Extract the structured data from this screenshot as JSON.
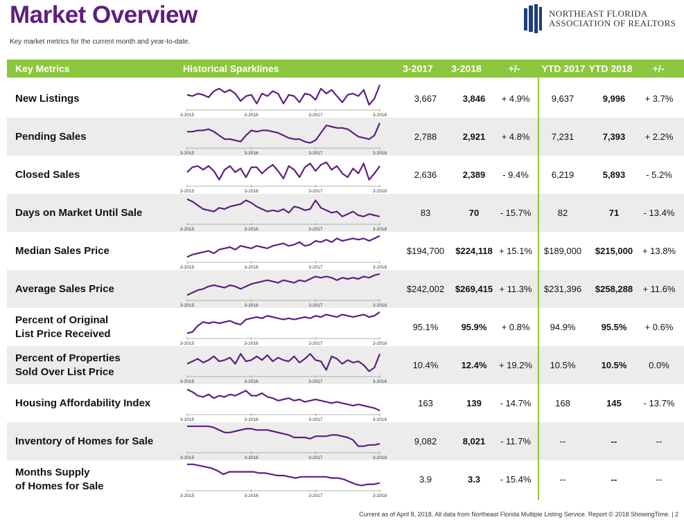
{
  "page": {
    "title": "Market Overview",
    "subtitle": "Key market metrics for the current month and year-to-date.",
    "logo_line1": "NORTHEAST FLORIDA",
    "logo_line2": "ASSOCIATION OF REALTORS",
    "footer": "Current as of April 8, 2018. All data from Northeast Florida Multiple Listing Service. Report © 2018 ShowingTime.  |  2"
  },
  "colors": {
    "accent": "#8dc63f",
    "title": "#5c1f80",
    "sparkline": "#5c1f80",
    "row_shade": "#ececec"
  },
  "headers": {
    "metric": "Key Metrics",
    "sparklines": "Historical Sparklines",
    "m2017": "3-2017",
    "m2018": "3-2018",
    "mchg": "+/-",
    "y2017": "YTD 2017",
    "y2018": "YTD 2018",
    "ychg": "+/-"
  },
  "sparkline_axis": [
    "3-2015",
    "3-2016",
    "3-2017",
    "3-2018"
  ],
  "rows": [
    {
      "metric": "New Listings",
      "m2017": "3,667",
      "m2018": "3,846",
      "mchg": "+ 4.9%",
      "y2017": "9,637",
      "y2018": "9,996",
      "ychg": "+ 3.7%",
      "spark": [
        0.5,
        0.55,
        0.45,
        0.5,
        0.6,
        0.35,
        0.25,
        0.4,
        0.3,
        0.45,
        0.75,
        0.55,
        0.5,
        0.85,
        0.45,
        0.55,
        0.35,
        0.45,
        0.85,
        0.5,
        0.55,
        0.8,
        0.45,
        0.5,
        0.7,
        0.25,
        0.45,
        0.3,
        0.55,
        0.8,
        0.5,
        0.45,
        0.55,
        0.3,
        0.9,
        0.65,
        0.1
      ]
    },
    {
      "metric": "Pending Sales",
      "m2017": "2,788",
      "m2018": "2,921",
      "mchg": "+ 4.8%",
      "y2017": "7,231",
      "y2018": "7,393",
      "ychg": "+ 2.2%",
      "spark": [
        0.45,
        0.45,
        0.4,
        0.4,
        0.35,
        0.45,
        0.6,
        0.75,
        0.75,
        0.8,
        0.85,
        0.6,
        0.4,
        0.45,
        0.4,
        0.4,
        0.45,
        0.5,
        0.6,
        0.7,
        0.75,
        0.75,
        0.85,
        0.9,
        0.8,
        0.5,
        0.2,
        0.25,
        0.3,
        0.3,
        0.35,
        0.5,
        0.65,
        0.7,
        0.75,
        0.6,
        0.1
      ]
    },
    {
      "metric": "Closed Sales",
      "m2017": "2,636",
      "m2018": "2,389",
      "mchg": "- 9.4%",
      "y2017": "6,219",
      "y2018": "5,893",
      "ychg": "- 5.2%",
      "spark": [
        0.55,
        0.35,
        0.3,
        0.45,
        0.3,
        0.5,
        0.85,
        0.45,
        0.3,
        0.55,
        0.4,
        0.75,
        0.35,
        0.35,
        0.6,
        0.4,
        0.25,
        0.5,
        0.8,
        0.3,
        0.45,
        0.75,
        0.35,
        0.2,
        0.5,
        0.25,
        0.15,
        0.45,
        0.3,
        0.6,
        0.75,
        0.4,
        0.6,
        0.2,
        0.85,
        0.6,
        0.3
      ]
    },
    {
      "metric": "Days on Market Until Sale",
      "m2017": "83",
      "m2018": "70",
      "mchg": "- 15.7%",
      "y2017": "82",
      "y2018": "71",
      "ychg": "- 13.4%",
      "spark": [
        0.1,
        0.2,
        0.35,
        0.5,
        0.55,
        0.6,
        0.45,
        0.5,
        0.4,
        0.35,
        0.3,
        0.15,
        0.25,
        0.4,
        0.5,
        0.6,
        0.55,
        0.6,
        0.5,
        0.65,
        0.4,
        0.45,
        0.55,
        0.5,
        0.15,
        0.45,
        0.55,
        0.65,
        0.6,
        0.8,
        0.7,
        0.6,
        0.75,
        0.8,
        0.7,
        0.75,
        0.8
      ]
    },
    {
      "metric": "Median Sales Price",
      "m2017": "$194,700",
      "m2018": "$224,118",
      "mchg": "+ 15.1%",
      "y2017": "$189,000",
      "y2018": "$215,000",
      "ychg": "+ 13.8%",
      "spark": [
        0.9,
        0.8,
        0.75,
        0.7,
        0.65,
        0.75,
        0.6,
        0.55,
        0.5,
        0.6,
        0.45,
        0.5,
        0.55,
        0.45,
        0.5,
        0.55,
        0.45,
        0.4,
        0.35,
        0.45,
        0.4,
        0.3,
        0.45,
        0.4,
        0.25,
        0.3,
        0.2,
        0.3,
        0.15,
        0.25,
        0.2,
        0.15,
        0.2,
        0.15,
        0.25,
        0.15,
        0.05
      ]
    },
    {
      "metric": "Average Sales Price",
      "m2017": "$242,002",
      "m2018": "$269,415",
      "mchg": "+ 11.3%",
      "y2017": "$231,396",
      "y2018": "$258,288",
      "ychg": "+ 11.6%",
      "spark": [
        0.9,
        0.8,
        0.7,
        0.65,
        0.55,
        0.5,
        0.55,
        0.6,
        0.5,
        0.55,
        0.65,
        0.55,
        0.45,
        0.4,
        0.35,
        0.3,
        0.35,
        0.4,
        0.3,
        0.35,
        0.4,
        0.3,
        0.35,
        0.25,
        0.15,
        0.2,
        0.15,
        0.2,
        0.3,
        0.2,
        0.25,
        0.2,
        0.25,
        0.15,
        0.2,
        0.1,
        0.05
      ]
    },
    {
      "metric": "Percent of Original\nList Price Received",
      "m2017": "95.1%",
      "m2018": "95.9%",
      "mchg": "+ 0.8%",
      "y2017": "94.9%",
      "y2018": "95.5%",
      "ychg": "+ 0.6%",
      "spark": [
        0.9,
        0.85,
        0.6,
        0.45,
        0.5,
        0.45,
        0.5,
        0.45,
        0.4,
        0.5,
        0.55,
        0.35,
        0.3,
        0.25,
        0.3,
        0.2,
        0.25,
        0.3,
        0.35,
        0.3,
        0.35,
        0.3,
        0.25,
        0.3,
        0.2,
        0.25,
        0.15,
        0.2,
        0.25,
        0.15,
        0.2,
        0.25,
        0.2,
        0.15,
        0.25,
        0.2,
        0.05
      ]
    },
    {
      "metric": "Percent of Properties\nSold Over List Price",
      "m2017": "10.4%",
      "m2018": "12.4%",
      "mchg": "+ 19.2%",
      "y2017": "10.5%",
      "y2018": "10.5%",
      "ychg": "0.0%",
      "spark": [
        0.6,
        0.5,
        0.4,
        0.55,
        0.45,
        0.3,
        0.5,
        0.45,
        0.35,
        0.6,
        0.2,
        0.5,
        0.45,
        0.3,
        0.45,
        0.25,
        0.5,
        0.35,
        0.45,
        0.5,
        0.3,
        0.55,
        0.4,
        0.2,
        0.45,
        0.5,
        0.85,
        0.3,
        0.4,
        0.6,
        0.45,
        0.55,
        0.5,
        0.65,
        0.9,
        0.75,
        0.2
      ]
    },
    {
      "metric": "Housing Affordability Index",
      "m2017": "163",
      "m2018": "139",
      "mchg": "- 14.7%",
      "y2017": "168",
      "y2018": "145",
      "ychg": "- 13.7%",
      "spark": [
        0.1,
        0.2,
        0.35,
        0.4,
        0.3,
        0.45,
        0.35,
        0.4,
        0.3,
        0.35,
        0.25,
        0.15,
        0.35,
        0.35,
        0.25,
        0.4,
        0.45,
        0.55,
        0.5,
        0.45,
        0.55,
        0.5,
        0.6,
        0.55,
        0.5,
        0.55,
        0.6,
        0.65,
        0.6,
        0.65,
        0.7,
        0.75,
        0.7,
        0.75,
        0.8,
        0.85,
        0.95
      ]
    },
    {
      "metric": "Inventory of Homes for Sale",
      "m2017": "9,082",
      "m2018": "8,021",
      "mchg": "- 11.7%",
      "y2017": "--",
      "y2018": "--",
      "ychg": "--",
      "spark": [
        0.05,
        0.05,
        0.05,
        0.05,
        0.05,
        0.1,
        0.2,
        0.3,
        0.3,
        0.25,
        0.2,
        0.15,
        0.15,
        0.2,
        0.2,
        0.2,
        0.25,
        0.3,
        0.35,
        0.4,
        0.5,
        0.5,
        0.5,
        0.55,
        0.45,
        0.45,
        0.45,
        0.4,
        0.4,
        0.45,
        0.5,
        0.6,
        0.85,
        0.85,
        0.8,
        0.8,
        0.75
      ]
    },
    {
      "metric": "Months Supply\nof Homes for Sale",
      "m2017": "3.9",
      "m2018": "3.3",
      "mchg": "- 15.4%",
      "y2017": "--",
      "y2018": "--",
      "ychg": "--",
      "spark": [
        0.05,
        0.05,
        0.1,
        0.15,
        0.2,
        0.3,
        0.45,
        0.35,
        0.35,
        0.35,
        0.35,
        0.35,
        0.4,
        0.4,
        0.45,
        0.5,
        0.5,
        0.55,
        0.6,
        0.55,
        0.55,
        0.55,
        0.55,
        0.55,
        0.6,
        0.6,
        0.65,
        0.75,
        0.85,
        0.9,
        0.85,
        0.85,
        0.8
      ]
    }
  ]
}
